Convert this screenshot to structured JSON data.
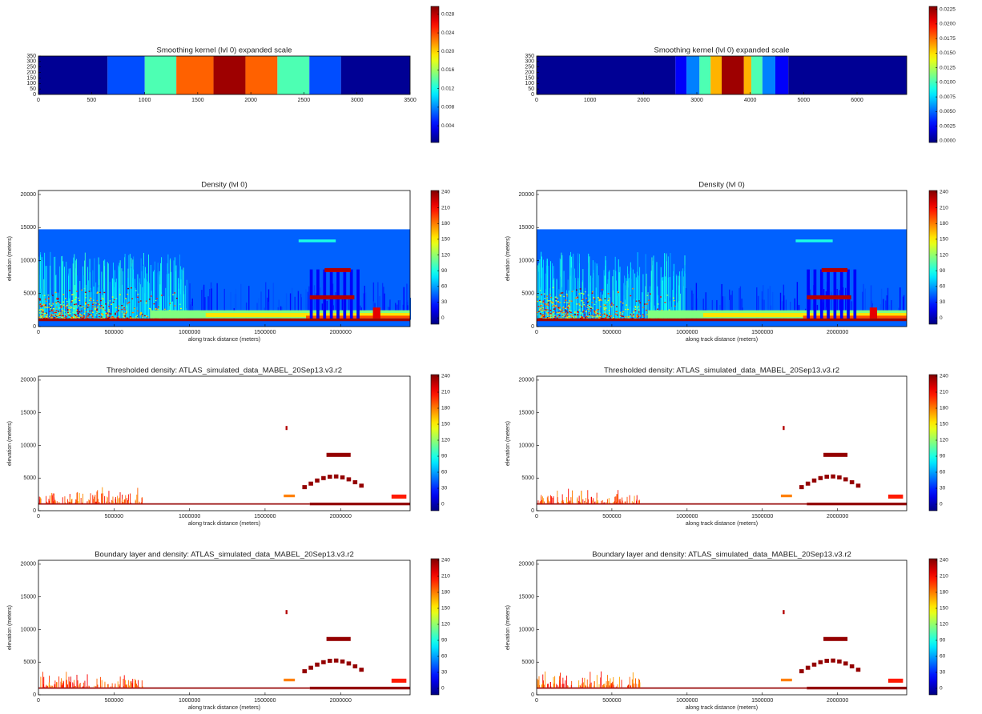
{
  "chart_data": [
    {
      "type": "heatmap",
      "title": "Smoothing kernel (lvl 0) expanded scale",
      "colormap": "jet",
      "xlim": [
        0,
        3500
      ],
      "xticks": [
        0,
        500,
        1000,
        1500,
        2000,
        2500,
        3000,
        3500
      ],
      "ylim": [
        0,
        350
      ],
      "yticks": [
        0,
        50,
        100,
        150,
        200,
        250,
        300,
        350
      ],
      "clim": [
        0.0004,
        0.0297
      ],
      "cticks": [
        0.004,
        0.008,
        0.012,
        0.016,
        {
          "value": 0.02,
          "label": "0.020"
        },
        0.024,
        0.028
      ]
    },
    {
      "type": "heatmap",
      "title": "Smoothing kernel (lvl 0) expanded scale",
      "colormap": "jet",
      "xlim": [
        0,
        6930
      ],
      "xticks": [
        0,
        1000,
        2000,
        3000,
        4000,
        5000,
        6000
      ],
      "ylim": [
        0,
        350
      ],
      "yticks": [
        0,
        50,
        100,
        150,
        200,
        250,
        300,
        350
      ],
      "clim": [
        -0.0003,
        0.023
      ],
      "cticks": [
        {
          "value": 0,
          "label": "0.0000"
        },
        0.0025,
        {
          "value": 0.005,
          "label": "0.0050"
        },
        0.0075,
        {
          "value": 0.01,
          "label": "0.0100"
        },
        0.0125,
        {
          "value": 0.015,
          "label": "0.0150"
        },
        0.0175,
        {
          "value": 0.02,
          "label": "0.0200"
        },
        0.0225
      ]
    },
    {
      "type": "heatmap",
      "title": "Density (lvl 0)",
      "xlabel": "along track distance (meters)",
      "ylabel": "elevation (meters)",
      "colormap": "jet",
      "xlim": [
        0,
        2460000
      ],
      "xticks": [
        0,
        500000,
        1000000,
        1500000,
        2000000
      ],
      "ylim": [
        0,
        20600
      ],
      "yticks": [
        0,
        5000,
        10000,
        15000,
        20000
      ],
      "clim": [
        -12,
        243
      ],
      "cticks": [
        0,
        30,
        60,
        90,
        120,
        150,
        180,
        210,
        240
      ]
    },
    {
      "type": "heatmap",
      "title": "Density (lvl 0)",
      "xlabel": "along track distance (meters)",
      "ylabel": "elevation (meters)",
      "colormap": "jet",
      "xlim": [
        0,
        2460000
      ],
      "xticks": [
        0,
        500000,
        1000000,
        1500000,
        2000000
      ],
      "ylim": [
        0,
        20600
      ],
      "yticks": [
        0,
        5000,
        10000,
        15000,
        20000
      ],
      "clim": [
        -12,
        243
      ],
      "cticks": [
        0,
        30,
        60,
        90,
        120,
        150,
        180,
        210,
        240
      ]
    },
    {
      "type": "heatmap",
      "title": "Thresholded density: ATLAS_simulated_data_MABEL_20Sep13.v3.r2",
      "xlabel": "along track distance (meters)",
      "ylabel": "elevation (meters)",
      "colormap": "jet",
      "xlim": [
        0,
        2460000
      ],
      "xticks": [
        0,
        500000,
        1000000,
        1500000,
        2000000
      ],
      "ylim": [
        0,
        20600
      ],
      "yticks": [
        0,
        5000,
        10000,
        15000,
        20000
      ],
      "clim": [
        -12,
        243
      ],
      "cticks": [
        0,
        30,
        60,
        90,
        120,
        150,
        180,
        210,
        240
      ]
    },
    {
      "type": "heatmap",
      "title": "Thresholded density: ATLAS_simulated_data_MABEL_20Sep13.v3.r2",
      "xlabel": "along track distance (meters)",
      "ylabel": "elevation (meters)",
      "colormap": "jet",
      "xlim": [
        0,
        2460000
      ],
      "xticks": [
        0,
        500000,
        1000000,
        1500000,
        2000000
      ],
      "ylim": [
        0,
        20600
      ],
      "yticks": [
        0,
        5000,
        10000,
        15000,
        20000
      ],
      "clim": [
        -12,
        243
      ],
      "cticks": [
        0,
        30,
        60,
        90,
        120,
        150,
        180,
        210,
        240
      ]
    },
    {
      "type": "heatmap",
      "title": "Boundary layer and density: ATLAS_simulated_data_MABEL_20Sep13.v3.r2",
      "xlabel": "along track distance (meters)",
      "ylabel": "elevation (meters)",
      "colormap": "jet",
      "xlim": [
        0,
        2460000
      ],
      "xticks": [
        0,
        500000,
        1000000,
        1500000,
        2000000
      ],
      "ylim": [
        0,
        20600
      ],
      "yticks": [
        0,
        5000,
        10000,
        15000,
        20000
      ],
      "clim": [
        -12,
        243
      ],
      "cticks": [
        0,
        30,
        60,
        90,
        120,
        150,
        180,
        210,
        240
      ]
    },
    {
      "type": "heatmap",
      "title": "Boundary layer and density: ATLAS_simulated_data_MABEL_20Sep13.v3.r2",
      "xlabel": "along track distance (meters)",
      "ylabel": "elevation (meters)",
      "colormap": "jet",
      "xlim": [
        0,
        2460000
      ],
      "xticks": [
        0,
        500000,
        1000000,
        1500000,
        2000000
      ],
      "ylim": [
        0,
        20600
      ],
      "yticks": [
        0,
        5000,
        10000,
        15000,
        20000
      ],
      "clim": [
        -12,
        243
      ],
      "cticks": [
        0,
        30,
        60,
        90,
        120,
        150,
        180,
        210,
        240
      ]
    }
  ]
}
